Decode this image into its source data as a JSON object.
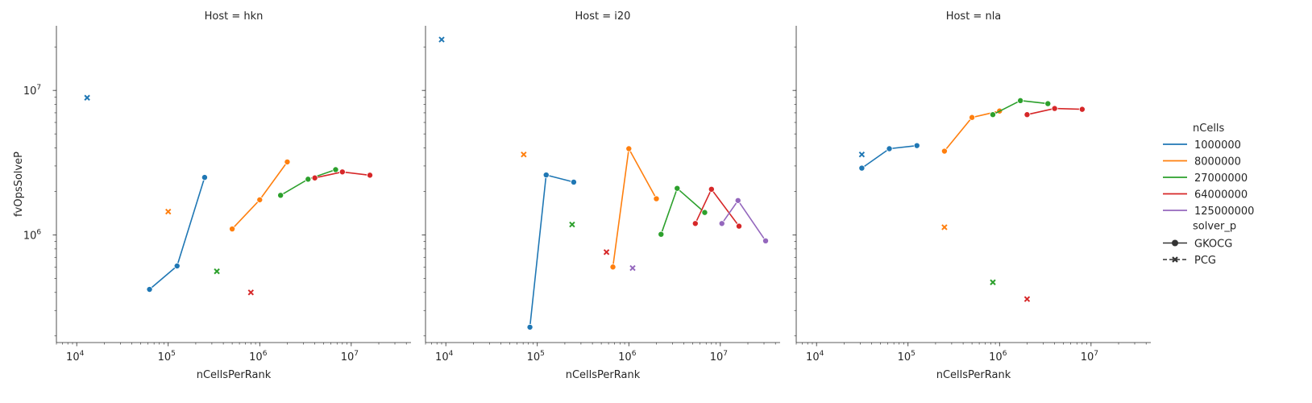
{
  "chart_data": {
    "type": "line",
    "x_scale": "log",
    "y_scale": "log",
    "xlabel": "nCellsPerRank",
    "ylabel": "fvOpsSolveP",
    "xlim": [
      6000,
      45000000
    ],
    "ylim": [
      180000,
      28000000
    ],
    "x_tick_labels": [
      {
        "value": 10000,
        "base": "10",
        "exp": "4"
      },
      {
        "value": 100000,
        "base": "10",
        "exp": "5"
      },
      {
        "value": 1000000,
        "base": "10",
        "exp": "6"
      },
      {
        "value": 10000000,
        "base": "10",
        "exp": "7"
      }
    ],
    "y_tick_labels": [
      {
        "value": 1000000,
        "base": "10",
        "exp": "6"
      },
      {
        "value": 10000000,
        "base": "10",
        "exp": "7"
      }
    ],
    "legend": {
      "hue_title": "nCells",
      "hue_entries": [
        {
          "label": "1000000",
          "color": "#1f77b4"
        },
        {
          "label": "8000000",
          "color": "#ff7f0e"
        },
        {
          "label": "27000000",
          "color": "#2ca02c"
        },
        {
          "label": "64000000",
          "color": "#d62728"
        },
        {
          "label": "125000000",
          "color": "#9467bd"
        }
      ],
      "style_title": "solver_p",
      "style_entries": [
        {
          "label": "GKOCG",
          "marker": "circle",
          "dash": "solid"
        },
        {
          "label": "PCG",
          "marker": "x",
          "dash": "dashed"
        }
      ]
    },
    "panels": [
      {
        "title": "Host = hkn",
        "series": [
          {
            "ncells": "1000000",
            "solver": "GKOCG",
            "points": [
              [
                62500,
                420000
              ],
              [
                125000,
                610000
              ],
              [
                250000,
                2500000
              ]
            ]
          },
          {
            "ncells": "1000000",
            "solver": "PCG",
            "points": [
              [
                13000,
                8900000
              ]
            ]
          },
          {
            "ncells": "8000000",
            "solver": "GKOCG",
            "points": [
              [
                500000,
                1100000
              ],
              [
                1000000,
                1750000
              ],
              [
                2000000,
                3200000
              ]
            ]
          },
          {
            "ncells": "8000000",
            "solver": "PCG",
            "points": [
              [
                100000,
                1450000
              ]
            ]
          },
          {
            "ncells": "27000000",
            "solver": "GKOCG",
            "points": [
              [
                1690000,
                1880000
              ],
              [
                3375000,
                2430000
              ],
              [
                6750000,
                2830000
              ]
            ]
          },
          {
            "ncells": "27000000",
            "solver": "PCG",
            "points": [
              [
                340000,
                560000
              ]
            ]
          },
          {
            "ncells": "64000000",
            "solver": "GKOCG",
            "points": [
              [
                4000000,
                2480000
              ],
              [
                8000000,
                2730000
              ],
              [
                16000000,
                2590000
              ]
            ]
          },
          {
            "ncells": "64000000",
            "solver": "PCG",
            "points": [
              [
                800000,
                400000
              ]
            ]
          }
        ]
      },
      {
        "title": "Host = i20",
        "series": [
          {
            "ncells": "1000000",
            "solver": "GKOCG",
            "points": [
              [
                83000,
                230000
              ],
              [
                125000,
                2600000
              ],
              [
                250000,
                2320000
              ]
            ]
          },
          {
            "ncells": "1000000",
            "solver": "PCG",
            "points": [
              [
                9000,
                22500000
              ]
            ]
          },
          {
            "ncells": "8000000",
            "solver": "GKOCG",
            "points": [
              [
                670000,
                600000
              ],
              [
                1000000,
                3950000
              ],
              [
                2000000,
                1780000
              ]
            ]
          },
          {
            "ncells": "8000000",
            "solver": "PCG",
            "points": [
              [
                71000,
                3600000
              ]
            ]
          },
          {
            "ncells": "27000000",
            "solver": "GKOCG",
            "points": [
              [
                2250000,
                1010000
              ],
              [
                3375000,
                2100000
              ],
              [
                6750000,
                1430000
              ]
            ]
          },
          {
            "ncells": "27000000",
            "solver": "PCG",
            "points": [
              [
                240000,
                1180000
              ]
            ]
          },
          {
            "ncells": "64000000",
            "solver": "GKOCG",
            "points": [
              [
                5330000,
                1200000
              ],
              [
                8000000,
                2070000
              ],
              [
                16000000,
                1150000
              ]
            ]
          },
          {
            "ncells": "64000000",
            "solver": "PCG",
            "points": [
              [
                570000,
                760000
              ]
            ]
          },
          {
            "ncells": "125000000",
            "solver": "GKOCG",
            "points": [
              [
                10400000,
                1200000
              ],
              [
                15600000,
                1730000
              ],
              [
                31250000,
                910000
              ]
            ]
          },
          {
            "ncells": "125000000",
            "solver": "PCG",
            "points": [
              [
                1100000,
                590000
              ]
            ]
          }
        ]
      },
      {
        "title": "Host = nla",
        "series": [
          {
            "ncells": "1000000",
            "solver": "GKOCG",
            "points": [
              [
                31250,
                2900000
              ],
              [
                62500,
                3950000
              ],
              [
                125000,
                4150000
              ]
            ]
          },
          {
            "ncells": "1000000",
            "solver": "PCG",
            "points": [
              [
                31250,
                3600000
              ]
            ]
          },
          {
            "ncells": "8000000",
            "solver": "GKOCG",
            "points": [
              [
                250000,
                3800000
              ],
              [
                500000,
                6500000
              ],
              [
                1000000,
                7200000
              ]
            ]
          },
          {
            "ncells": "8000000",
            "solver": "PCG",
            "points": [
              [
                250000,
                1130000
              ]
            ]
          },
          {
            "ncells": "27000000",
            "solver": "GKOCG",
            "points": [
              [
                845000,
                6800000
              ],
              [
                1690000,
                8500000
              ],
              [
                3375000,
                8100000
              ]
            ]
          },
          {
            "ncells": "27000000",
            "solver": "PCG",
            "points": [
              [
                845000,
                470000
              ]
            ]
          },
          {
            "ncells": "64000000",
            "solver": "GKOCG",
            "points": [
              [
                2000000,
                6800000
              ],
              [
                4000000,
                7500000
              ],
              [
                8000000,
                7400000
              ]
            ]
          },
          {
            "ncells": "64000000",
            "solver": "PCG",
            "points": [
              [
                2000000,
                360000
              ]
            ]
          }
        ]
      }
    ]
  }
}
